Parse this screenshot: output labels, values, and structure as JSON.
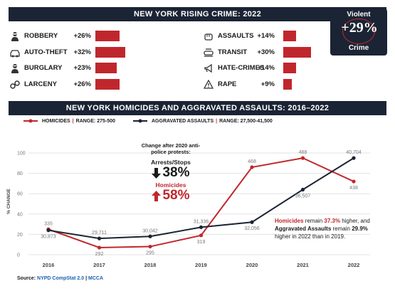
{
  "header": {
    "title": "NEW YORK RISING CRIME: 2022"
  },
  "violent": {
    "top": "Violent",
    "value": "+29%",
    "bottom": "Crime"
  },
  "crimes_left": [
    {
      "name": "ROBBERY",
      "pct": "+26%",
      "value": 26,
      "icon": "robber-icon"
    },
    {
      "name": "AUTO-THEFT",
      "pct": "+32%",
      "value": 32,
      "icon": "car-icon"
    },
    {
      "name": "BURGLARY",
      "pct": "+23%",
      "value": 23,
      "icon": "burglar-icon"
    },
    {
      "name": "LARCENY",
      "pct": "+26%",
      "value": 26,
      "icon": "handcuffs-icon"
    }
  ],
  "crimes_right": [
    {
      "name": "ASSAULTS",
      "pct": "+14%",
      "value": 14,
      "icon": "fist-icon"
    },
    {
      "name": "TRANSIT",
      "pct": "+30%",
      "value": 30,
      "icon": "train-icon"
    },
    {
      "name": "HATE-CRIMES",
      "pct": "+14%",
      "value": 14,
      "icon": "megaphone-icon"
    },
    {
      "name": "RAPE",
      "pct": "+9%",
      "value": 9,
      "icon": "warning-icon"
    }
  ],
  "chart_title": "NEW YORK HOMICIDES AND AGGRAVATED ASSAULTS: 2016–2022",
  "legend": {
    "homicides_name": "HOMICIDES",
    "homicides_range": "RANGE: 275-500",
    "assaults_name": "AGGRAVATED ASSAULTS",
    "assaults_range": "RANGE: 27,500-41,500",
    "separator": "|"
  },
  "annotation": {
    "title": "Change after 2020 anti-police protests:",
    "arrests_label": "Arrests/Stops",
    "arrests_value": "38%",
    "homicides_label": "Homicides",
    "homicides_value": "58%"
  },
  "note": {
    "p1": "Homicides",
    "p2": " remain ",
    "p3": "37.3%",
    "p4": " higher, and ",
    "p5": "Aggravated Assaults",
    "p6": " remain ",
    "p7": "29.9%",
    "p8": " higher in 2022 than in 2019."
  },
  "source": {
    "label": "Source: ",
    "link1": "NYPD CompStat 2.0",
    "sep": " | ",
    "link2": "MCCA"
  },
  "colors": {
    "homicides": "#c0272d",
    "assaults": "#1b2434"
  },
  "chart_data": {
    "type": "line",
    "x": [
      "2016",
      "2017",
      "2018",
      "2019",
      "2020",
      "2021",
      "2022"
    ],
    "ylabel": "% CHANGE",
    "ylim": [
      0,
      100
    ],
    "yticks": [
      0,
      20,
      40,
      60,
      80,
      100
    ],
    "grid": true,
    "series": [
      {
        "name": "HOMICIDES",
        "values": [
          25,
          7,
          8,
          19,
          86,
          95,
          72
        ],
        "labels": [
          "335",
          "292",
          "295",
          "319",
          "468",
          "488",
          "438"
        ]
      },
      {
        "name": "AGGRAVATED ASSAULTS",
        "values": [
          24,
          16,
          18,
          27,
          32,
          64,
          95
        ],
        "labels": [
          "30,873",
          "29,711",
          "30,042",
          "31,336",
          "32,056",
          "36,507",
          "40,704"
        ]
      }
    ]
  }
}
